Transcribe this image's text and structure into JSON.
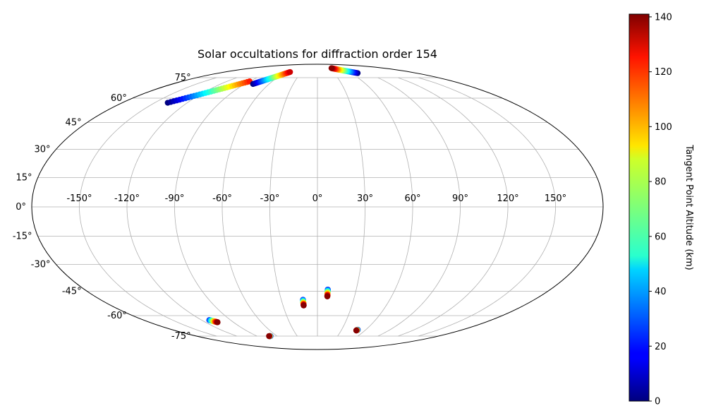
{
  "chart_data": {
    "type": "scatter",
    "projection": "mollweide",
    "title": "Solar occultations for diffraction order 154",
    "grid": true,
    "lon_ticks": [
      -150,
      -120,
      -90,
      -60,
      -30,
      0,
      30,
      60,
      90,
      120,
      150
    ],
    "lat_ticks": [
      -75,
      -60,
      -45,
      -30,
      -15,
      0,
      15,
      30,
      45,
      60,
      75
    ],
    "lon_tick_labels": [
      "-150°",
      "-120°",
      "-90°",
      "-60°",
      "-30°",
      "0°",
      "30°",
      "60°",
      "90°",
      "120°",
      "150°"
    ],
    "lat_tick_labels": [
      "-75°",
      "-60°",
      "-45°",
      "-30°",
      "-15°",
      "0°",
      "15°",
      "30°",
      "45°",
      "60°",
      "75°"
    ],
    "colorbar": {
      "label": "Tangent Point Altitude (km)",
      "colormap": "jet",
      "range": [
        0,
        141
      ],
      "ticks": [
        0,
        20,
        40,
        60,
        80,
        100,
        120,
        140
      ],
      "tick_labels": [
        "0",
        "20",
        "40",
        "60",
        "80",
        "100",
        "120",
        "140"
      ]
    },
    "tracks": [
      {
        "lon_start": -138,
        "lat_start": 57,
        "alt_start": 0,
        "lon_end": -90,
        "lat_end": 72,
        "alt_end": 120
      },
      {
        "lon_start": -80,
        "lat_start": 70,
        "alt_start": 0,
        "lon_end": -53,
        "lat_end": 80,
        "alt_end": 130
      },
      {
        "lon_start": 73,
        "lat_start": 79,
        "alt_start": 0,
        "lon_end": 38,
        "lat_end": 84,
        "alt_end": 140
      },
      {
        "lon_start": -112,
        "lat_start": -63,
        "alt_start": 20,
        "lon_end": -107,
        "lat_end": -64.5,
        "alt_end": 140
      },
      {
        "lon_start": -70,
        "lat_start": -75,
        "alt_start": 0,
        "lon_end": -72,
        "lat_end": -75,
        "alt_end": 140
      },
      {
        "lon_start": -12,
        "lat_start": -50,
        "alt_start": 20,
        "lon_end": -12,
        "lat_end": -53.5,
        "alt_end": 140
      },
      {
        "lon_start": 8,
        "lat_start": -44,
        "alt_start": 20,
        "lon_end": 8,
        "lat_end": -48,
        "alt_end": 140
      },
      {
        "lon_start": 50,
        "lat_start": -70,
        "alt_start": 0,
        "lon_end": 49,
        "lat_end": -70.5,
        "alt_end": 140
      }
    ]
  }
}
